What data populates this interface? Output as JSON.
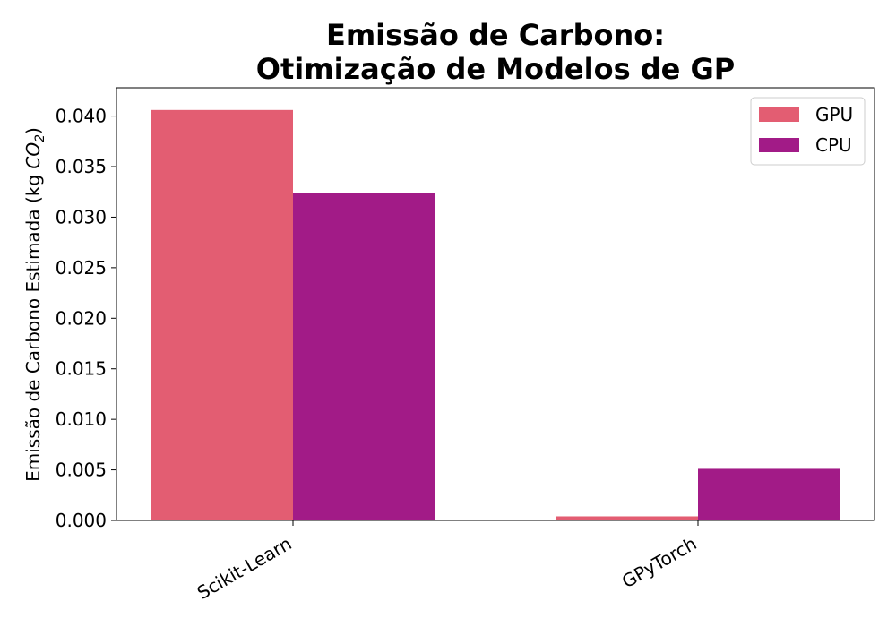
{
  "chart_data": {
    "type": "bar",
    "title_lines": [
      "Emissão de Carbono:",
      "Otimização de Modelos de GP"
    ],
    "ylabel": "Emissão de Carbono Estimada (kg ",
    "ylabel_unit": "CO",
    "ylabel_sub": "2",
    "ylabel_close": ")",
    "categories": [
      "Scikit-Learn",
      "GPyTorch"
    ],
    "series": [
      {
        "name": "GPU",
        "color": "#e35d72",
        "values": [
          0.0406,
          0.0004
        ]
      },
      {
        "name": "CPU",
        "color": "#a21b87",
        "values": [
          0.0324,
          0.0051
        ]
      }
    ],
    "ylim": [
      0,
      0.0428
    ],
    "yticks": [
      0.0,
      0.005,
      0.01,
      0.015,
      0.02,
      0.025,
      0.03,
      0.035,
      0.04
    ],
    "ytick_labels": [
      "0.000",
      "0.005",
      "0.010",
      "0.015",
      "0.020",
      "0.025",
      "0.030",
      "0.035",
      "0.040"
    ],
    "legend_position": "top-right",
    "grid": false
  }
}
